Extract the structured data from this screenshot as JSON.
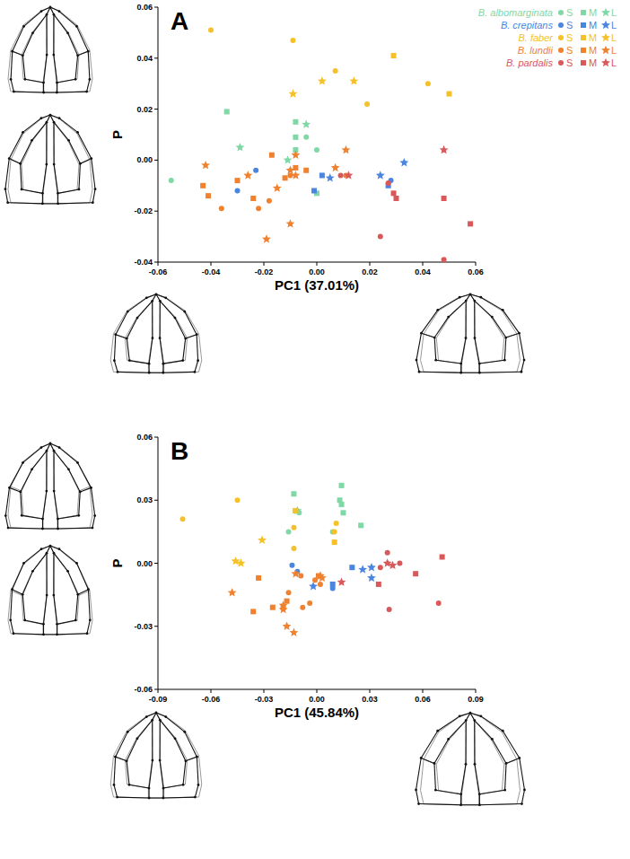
{
  "chart_data": [
    {
      "type": "scatter",
      "title": "A",
      "x_label": "PC1 (37.01%)",
      "y_label": "P",
      "legend": "top-right",
      "xlim": [
        -0.06,
        0.06
      ],
      "ylim": [
        -0.04,
        0.06
      ],
      "xticks": [
        -0.06,
        -0.04,
        -0.02,
        {
          "value": 0,
          "label": "0.00"
        },
        0.02,
        0.04,
        0.06
      ],
      "yticks": [
        -0.04,
        -0.02,
        {
          "value": 0,
          "label": "0.00"
        },
        0.02,
        0.04,
        0.06
      ],
      "series": [
        {
          "name": "B. albomarginata",
          "class": "S",
          "marker": "circle",
          "color": "#7fd8a6",
          "x": [
            -0.055,
            -0.004,
            0.0
          ],
          "values": [
            -0.008,
            0.009,
            0.004
          ]
        },
        {
          "name": "B. albomarginata",
          "class": "M",
          "marker": "square",
          "color": "#7fd8a6",
          "x": [
            -0.034,
            -0.008,
            -0.008,
            -0.008,
            0.0
          ],
          "values": [
            0.019,
            0.015,
            0.009,
            0.004,
            -0.013
          ]
        },
        {
          "name": "B. albomarginata",
          "class": "L",
          "marker": "star",
          "color": "#7fd8a6",
          "x": [
            -0.029,
            -0.004,
            -0.011
          ],
          "values": [
            0.005,
            0.014,
            0.0
          ]
        },
        {
          "name": "B. crepitans",
          "class": "S",
          "marker": "circle",
          "color": "#4a86e0",
          "x": [
            -0.023,
            -0.03,
            0.028
          ],
          "values": [
            -0.004,
            -0.012,
            -0.008
          ]
        },
        {
          "name": "B. crepitans",
          "class": "M",
          "marker": "square",
          "color": "#4a86e0",
          "x": [
            -0.001,
            0.002,
            0.027
          ],
          "values": [
            -0.012,
            -0.006,
            -0.01
          ]
        },
        {
          "name": "B. crepitans",
          "class": "L",
          "marker": "star",
          "color": "#4a86e0",
          "x": [
            0.005,
            0.024,
            0.033
          ],
          "values": [
            -0.007,
            -0.006,
            -0.001
          ]
        },
        {
          "name": "B. faber",
          "class": "S",
          "marker": "circle",
          "color": "#f5c12a",
          "x": [
            -0.04,
            -0.009,
            0.007,
            0.019,
            0.042
          ],
          "values": [
            0.051,
            0.047,
            0.035,
            0.022,
            0.03
          ]
        },
        {
          "name": "B. faber",
          "class": "M",
          "marker": "square",
          "color": "#f5c12a",
          "x": [
            0.029,
            0.05
          ],
          "values": [
            0.041,
            0.026
          ]
        },
        {
          "name": "B. faber",
          "class": "L",
          "marker": "star",
          "color": "#f5c12a",
          "x": [
            -0.009,
            0.002,
            0.014
          ],
          "values": [
            0.026,
            0.031,
            0.031
          ]
        },
        {
          "name": "B. lundii",
          "class": "S",
          "marker": "circle",
          "color": "#f0812e",
          "x": [
            -0.036,
            -0.022,
            -0.018,
            -0.01,
            0.011
          ],
          "values": [
            -0.019,
            -0.019,
            -0.016,
            -0.006,
            -0.006
          ]
        },
        {
          "name": "B. lundii",
          "class": "M",
          "marker": "square",
          "color": "#f0812e",
          "x": [
            -0.043,
            -0.041,
            -0.03,
            -0.024,
            -0.017,
            -0.012,
            -0.008,
            -0.004
          ],
          "values": [
            -0.01,
            -0.014,
            -0.008,
            -0.015,
            0.002,
            -0.007,
            -0.003,
            -0.004
          ]
        },
        {
          "name": "B. lundii",
          "class": "L",
          "marker": "star",
          "color": "#f0812e",
          "x": [
            -0.042,
            -0.026,
            -0.015,
            -0.019,
            -0.01,
            -0.01,
            -0.008,
            -0.008,
            0.007,
            0.011
          ],
          "values": [
            -0.002,
            -0.006,
            -0.011,
            -0.031,
            -0.025,
            -0.004,
            -0.006,
            0.002,
            -0.003,
            0.004
          ]
        },
        {
          "name": "B. pardalis",
          "class": "S",
          "marker": "circle",
          "color": "#d9585a",
          "x": [
            0.009,
            0.024,
            0.027,
            0.048
          ],
          "values": [
            -0.006,
            -0.03,
            -0.009,
            -0.039
          ]
        },
        {
          "name": "B. pardalis",
          "class": "M",
          "marker": "square",
          "color": "#d9585a",
          "x": [
            0.029,
            0.03,
            0.048,
            0.058
          ],
          "values": [
            -0.013,
            -0.015,
            -0.015,
            -0.025
          ]
        },
        {
          "name": "B. pardalis",
          "class": "L",
          "marker": "star",
          "color": "#d9585a",
          "x": [
            0.012,
            0.048
          ],
          "values": [
            -0.006,
            0.004
          ]
        }
      ]
    },
    {
      "type": "scatter",
      "title": "B",
      "x_label": "PC1 (45.84%)",
      "y_label": "P",
      "xlim": [
        -0.09,
        0.09
      ],
      "ylim": [
        -0.06,
        0.06
      ],
      "xticks": [
        -0.09,
        -0.06,
        -0.03,
        {
          "value": 0,
          "label": "0.00"
        },
        0.03,
        0.06,
        0.09
      ],
      "yticks": [
        -0.06,
        -0.03,
        {
          "value": 0,
          "label": "0.00"
        },
        0.03,
        0.06
      ],
      "series": [
        {
          "name": "B. albomarginata",
          "class": "S",
          "marker": "circle",
          "color": "#7fd8a6",
          "x": [
            -0.016,
            0.009,
            -0.01
          ],
          "values": [
            0.015,
            0.015,
            0.024
          ]
        },
        {
          "name": "B. albomarginata",
          "class": "M",
          "marker": "square",
          "color": "#7fd8a6",
          "x": [
            -0.013,
            0.014,
            0.013,
            0.014,
            0.015,
            0.025,
            -0.012
          ],
          "values": [
            0.033,
            0.037,
            0.03,
            0.028,
            0.024,
            0.018,
            0.025
          ]
        },
        {
          "name": "B. albomarginata",
          "class": "L",
          "marker": "star",
          "color": "#7fd8a6",
          "x": [
            -0.011
          ],
          "values": [
            0.025
          ]
        },
        {
          "name": "B. crepitans",
          "class": "S",
          "marker": "circle",
          "color": "#4a86e0",
          "x": [
            -0.014,
            -0.011,
            0.009
          ],
          "values": [
            -0.001,
            -0.004,
            -0.012
          ]
        },
        {
          "name": "B. crepitans",
          "class": "M",
          "marker": "square",
          "color": "#4a86e0",
          "x": [
            0.009,
            0.02
          ],
          "values": [
            -0.01,
            -0.002
          ]
        },
        {
          "name": "B. crepitans",
          "class": "L",
          "marker": "star",
          "color": "#4a86e0",
          "x": [
            -0.002,
            0.026,
            0.031,
            0.031
          ],
          "values": [
            -0.011,
            -0.003,
            -0.002,
            -0.007
          ]
        },
        {
          "name": "B. faber",
          "class": "S",
          "marker": "circle",
          "color": "#f5c12a",
          "x": [
            -0.076,
            -0.045,
            -0.013,
            -0.013,
            0.011,
            0.01
          ],
          "values": [
            0.021,
            0.03,
            0.017,
            0.007,
            0.019,
            0.015
          ]
        },
        {
          "name": "B. faber",
          "class": "M",
          "marker": "square",
          "color": "#f5c12a",
          "x": [
            -0.012,
            0.01
          ],
          "values": [
            0.025,
            0.01
          ]
        },
        {
          "name": "B. faber",
          "class": "L",
          "marker": "star",
          "color": "#f5c12a",
          "x": [
            -0.046,
            -0.043,
            -0.031
          ],
          "values": [
            0.001,
            0.0,
            0.011
          ]
        },
        {
          "name": "B. lundii",
          "class": "S",
          "marker": "circle",
          "color": "#f0812e",
          "x": [
            -0.016,
            -0.009,
            -0.001,
            0.002,
            -0.004,
            -0.008
          ],
          "values": [
            -0.014,
            -0.006,
            -0.008,
            -0.01,
            -0.019,
            -0.021
          ]
        },
        {
          "name": "B. lundii",
          "class": "M",
          "marker": "square",
          "color": "#f0812e",
          "x": [
            -0.033,
            -0.036,
            -0.025,
            -0.019,
            -0.017,
            0.001
          ],
          "values": [
            -0.007,
            -0.023,
            -0.021,
            -0.021,
            -0.018,
            -0.006
          ]
        },
        {
          "name": "B. lundii",
          "class": "L",
          "marker": "star",
          "color": "#f0812e",
          "x": [
            -0.048,
            -0.019,
            -0.019,
            -0.013,
            -0.017,
            -0.012,
            0.003,
            0.002
          ],
          "values": [
            -0.014,
            -0.022,
            -0.02,
            -0.033,
            -0.03,
            -0.005,
            -0.007,
            -0.006
          ]
        },
        {
          "name": "B. pardalis",
          "class": "S",
          "marker": "circle",
          "color": "#d9585a",
          "x": [
            0.036,
            0.04,
            0.041,
            0.047,
            0.069
          ],
          "values": [
            -0.002,
            0.005,
            -0.022,
            0.0,
            -0.019
          ]
        },
        {
          "name": "B. pardalis",
          "class": "M",
          "marker": "square",
          "color": "#d9585a",
          "x": [
            0.035,
            0.056,
            0.071
          ],
          "values": [
            -0.01,
            -0.005,
            0.003
          ]
        },
        {
          "name": "B. pardalis",
          "class": "L",
          "marker": "star",
          "color": "#d9585a",
          "x": [
            0.014,
            0.04,
            0.043
          ],
          "values": [
            -0.009,
            0.0,
            -0.001
          ]
        }
      ]
    }
  ]
}
